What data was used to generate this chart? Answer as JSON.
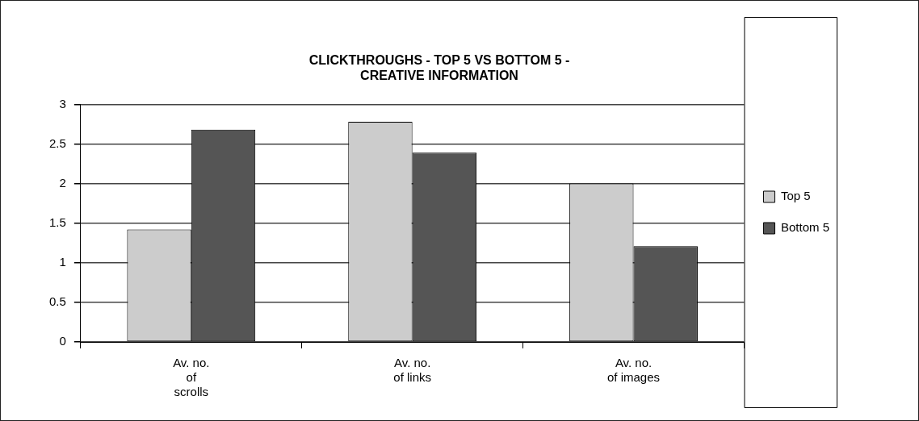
{
  "chart_data": {
    "type": "bar",
    "title": "CLICKTHROUGHS - TOP 5 VS BOTTOM 5 - CREATIVE INFORMATION",
    "categories": [
      "Av. no. of scrolls",
      "Av. no. of links",
      "Av. no. of images"
    ],
    "series": [
      {
        "name": "Top 5",
        "color": "#cccccc",
        "values": [
          1.42,
          2.78,
          2.0
        ]
      },
      {
        "name": "Bottom 5",
        "color": "#555555",
        "values": [
          2.68,
          2.39,
          1.21
        ]
      }
    ],
    "ylim": [
      0,
      3
    ],
    "yticks": [
      0,
      0.5,
      1,
      1.5,
      2,
      2.5,
      3
    ],
    "grid": "y",
    "legend": "right"
  }
}
